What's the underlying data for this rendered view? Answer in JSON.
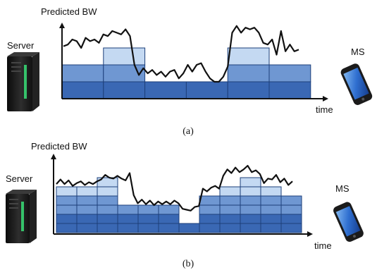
{
  "panel_a": {
    "y_label": "Predicted BW",
    "x_label": "time",
    "left_label": "Server",
    "right_label": "MS",
    "caption": "(a)",
    "layer_rows": [
      {
        "row": 1,
        "segment_spans": [
          [
            1,
            1
          ],
          [
            2,
            2
          ],
          [
            3,
            3
          ],
          [
            4,
            4
          ],
          [
            5,
            5
          ],
          [
            6,
            6
          ]
        ]
      },
      {
        "row": 2,
        "segment_spans": [
          [
            1,
            1
          ],
          [
            2,
            2
          ],
          [
            5,
            5
          ],
          [
            6,
            6
          ]
        ]
      },
      {
        "row": 3,
        "segment_spans": [
          [
            2,
            2
          ],
          [
            5,
            5
          ]
        ]
      }
    ],
    "bandwidth_trace": [
      3.1,
      3.2,
      3.5,
      3.4,
      3.0,
      3.6,
      3.4,
      3.5,
      3.3,
      3.8,
      3.7,
      4.0,
      3.9,
      3.8,
      4.1,
      3.7,
      2.0,
      1.4,
      1.8,
      1.5,
      1.7,
      1.4,
      1.6,
      1.3,
      1.6,
      1.7,
      1.2,
      1.5,
      2.0,
      1.6,
      2.0,
      2.1,
      1.6,
      1.2,
      1.0,
      1.0,
      1.3,
      1.9,
      3.9,
      4.3,
      3.9,
      4.2,
      4.1,
      4.2,
      3.9,
      3.3,
      3.2,
      3.5,
      2.6,
      4.0,
      2.8,
      3.2,
      2.8,
      2.9
    ]
  },
  "panel_b": {
    "y_label": "Predicted BW",
    "x_label": "time",
    "left_label": "Server",
    "right_label": "MS",
    "caption": "(b)",
    "layer_rows": [
      {
        "row": 1,
        "segment_spans": [
          [
            1,
            1
          ],
          [
            2,
            2
          ],
          [
            3,
            3
          ],
          [
            4,
            4
          ],
          [
            5,
            5
          ],
          [
            6,
            6
          ],
          [
            7,
            7
          ],
          [
            8,
            8
          ],
          [
            9,
            9
          ],
          [
            10,
            10
          ],
          [
            11,
            11
          ],
          [
            12,
            12
          ]
        ]
      },
      {
        "row": 2,
        "segment_spans": [
          [
            1,
            1
          ],
          [
            2,
            2
          ],
          [
            3,
            3
          ],
          [
            4,
            4
          ],
          [
            5,
            5
          ],
          [
            6,
            6
          ],
          [
            8,
            8
          ],
          [
            9,
            9
          ],
          [
            10,
            10
          ],
          [
            11,
            11
          ],
          [
            12,
            12
          ]
        ]
      },
      {
        "row": 3,
        "segment_spans": [
          [
            1,
            1
          ],
          [
            2,
            2
          ],
          [
            3,
            3
          ],
          [
            4,
            4
          ],
          [
            5,
            5
          ],
          [
            6,
            6
          ],
          [
            8,
            8
          ],
          [
            9,
            9
          ],
          [
            10,
            10
          ],
          [
            11,
            11
          ],
          [
            12,
            12
          ]
        ]
      },
      {
        "row": 4,
        "segment_spans": [
          [
            1,
            1
          ],
          [
            2,
            2
          ],
          [
            3,
            3
          ],
          [
            8,
            8
          ],
          [
            9,
            9
          ],
          [
            10,
            10
          ],
          [
            11,
            11
          ],
          [
            12,
            12
          ]
        ]
      },
      {
        "row": 5,
        "segment_spans": [
          [
            1,
            1
          ],
          [
            2,
            2
          ],
          [
            3,
            3
          ],
          [
            9,
            9
          ],
          [
            10,
            10
          ],
          [
            11,
            11
          ]
        ]
      },
      {
        "row": 6,
        "segment_spans": [
          [
            3,
            3
          ],
          [
            10,
            10
          ]
        ]
      }
    ],
    "bandwidth_trace": [
      5.3,
      5.8,
      5.3,
      5.7,
      5.1,
      5.4,
      5.6,
      5.2,
      5.5,
      5.3,
      5.6,
      5.8,
      6.3,
      6.0,
      5.9,
      6.2,
      5.9,
      5.7,
      6.5,
      4.1,
      3.2,
      3.6,
      3.1,
      3.5,
      3.0,
      3.4,
      3.1,
      3.4,
      3.1,
      3.5,
      3.2,
      2.6,
      2.5,
      2.4,
      2.8,
      2.9,
      4.8,
      4.5,
      4.9,
      5.1,
      4.8,
      6.2,
      6.9,
      6.5,
      7.1,
      6.6,
      6.9,
      7.3,
      6.6,
      6.8,
      6.4,
      5.4,
      5.9,
      5.8,
      6.3,
      5.5,
      5.9,
      5.2,
      5.6
    ]
  },
  "colors": {
    "band_layer_1": "#3a68b4",
    "band_layer_2": "#6f97d2",
    "band_layer_3": "#c4d9f2",
    "cell_border": "#1d3f7a",
    "trace": "#111111",
    "axis": "#111111"
  },
  "icons": {
    "server": "server-tower-icon",
    "phone": "smartphone-icon"
  }
}
